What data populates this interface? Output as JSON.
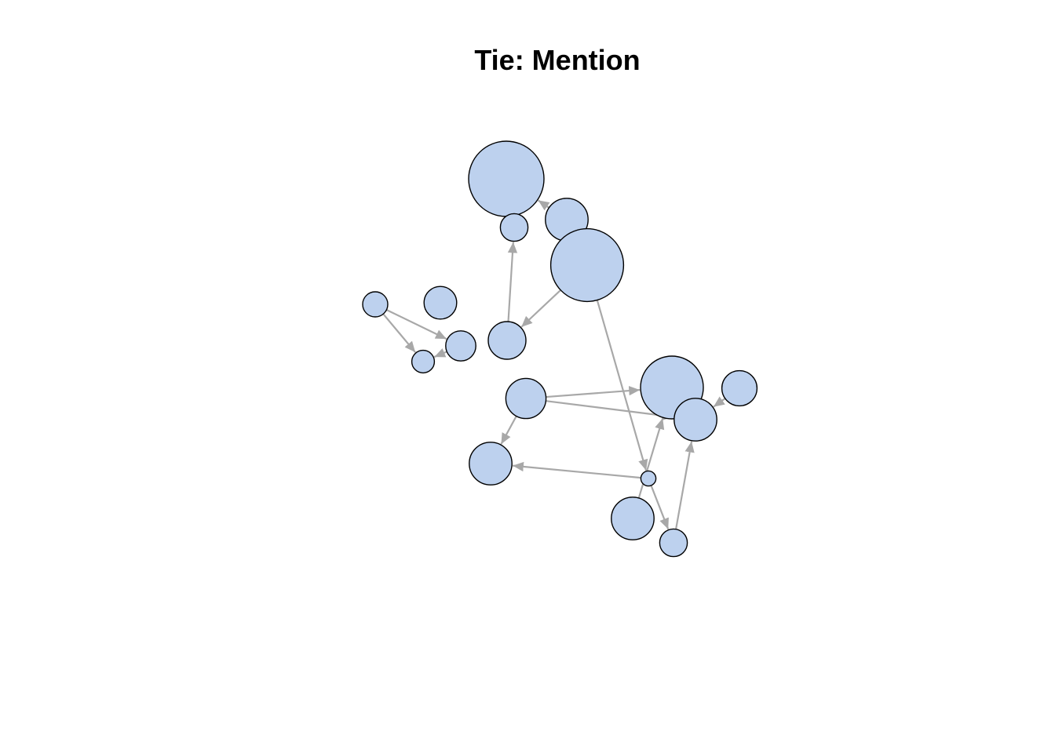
{
  "title": "Tie: Mention",
  "colors": {
    "node_fill": "#bdd1ee",
    "node_stroke": "#000000",
    "edge": "#a8a8a8",
    "background": "#ffffff"
  },
  "nodes": [
    {
      "id": "n1",
      "size": 3.0
    },
    {
      "id": "n2",
      "size": 1.1
    },
    {
      "id": "n3",
      "size": 1.7
    },
    {
      "id": "n4",
      "size": 2.9
    },
    {
      "id": "n5",
      "size": 1.0
    },
    {
      "id": "n6",
      "size": 1.3
    },
    {
      "id": "n7",
      "size": 0.9
    },
    {
      "id": "n8",
      "size": 1.2
    },
    {
      "id": "n9",
      "size": 1.5
    },
    {
      "id": "n10",
      "size": 1.6
    },
    {
      "id": "n11",
      "size": 2.5
    },
    {
      "id": "n12",
      "size": 1.4
    },
    {
      "id": "n13",
      "size": 1.7
    },
    {
      "id": "n14",
      "size": 1.7
    },
    {
      "id": "n15",
      "size": 0.6
    },
    {
      "id": "n16",
      "size": 1.7
    },
    {
      "id": "n17",
      "size": 1.1
    }
  ],
  "edges": [
    {
      "from": "n3",
      "to": "n1"
    },
    {
      "from": "n9",
      "to": "n2"
    },
    {
      "from": "n4",
      "to": "n9"
    },
    {
      "from": "n4",
      "to": "n15"
    },
    {
      "from": "n5",
      "to": "n7"
    },
    {
      "from": "n5",
      "to": "n8"
    },
    {
      "from": "n8",
      "to": "n7"
    },
    {
      "from": "n10",
      "to": "n11"
    },
    {
      "from": "n10",
      "to": "n13"
    },
    {
      "from": "n10",
      "to": "n14"
    },
    {
      "from": "n12",
      "to": "n13"
    },
    {
      "from": "n15",
      "to": "n14"
    },
    {
      "from": "n15",
      "to": "n17"
    },
    {
      "from": "n16",
      "to": "n11"
    },
    {
      "from": "n17",
      "to": "n13"
    }
  ]
}
